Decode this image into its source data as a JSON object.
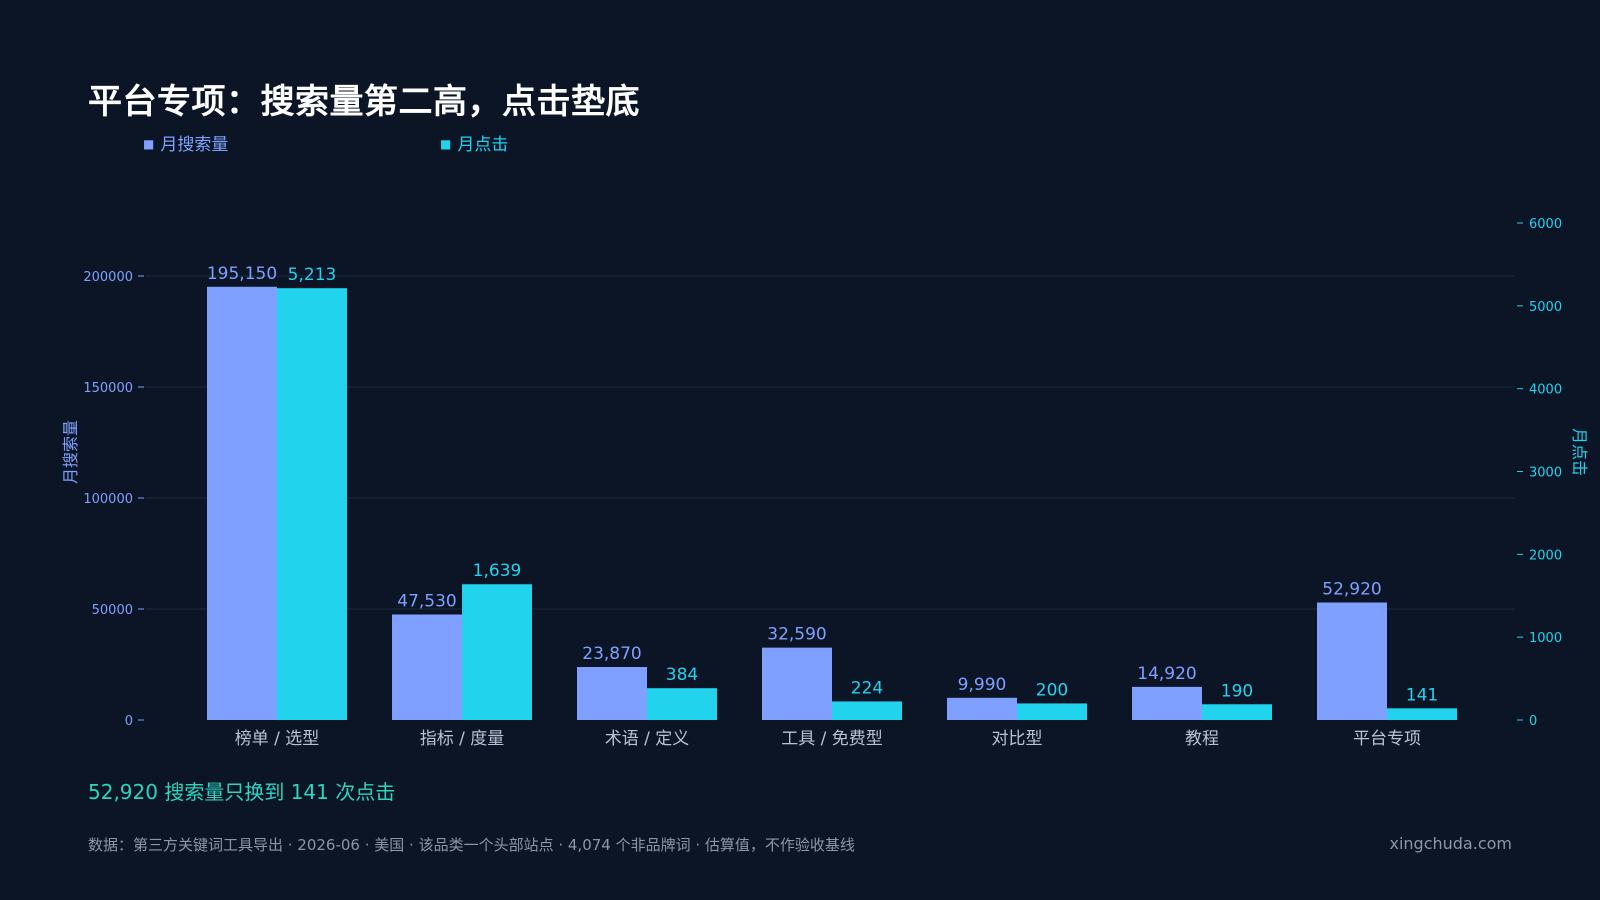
{
  "title": "平台专项：搜索量第二高，点击垫底",
  "insight": "52,920 搜索量只换到 141 次点击",
  "footer": {
    "source": "数据：第三方关键词工具导出 · 2026-06 · 美国 · 该品类一个头部站点 · 4,074 个非品牌词 · 估算值，不作验收基线",
    "site": "xingchuda.com"
  },
  "colors": {
    "background": "#0b1526",
    "search": "#7fa0ff",
    "clicks": "#22d3ee",
    "insight": "#2dd4bf"
  },
  "chart_data": {
    "type": "bar",
    "categories": [
      "榜单 / 选型",
      "指标 / 度量",
      "术语 / 定义",
      "工具 / 免费型",
      "对比型",
      "教程",
      "平台专项"
    ],
    "series": [
      {
        "name": "月搜索量",
        "axis": "left",
        "values": [
          195150,
          47530,
          23870,
          32590,
          9990,
          14920,
          52920
        ],
        "labels": [
          "195,150",
          "47,530",
          "23,870",
          "32,590",
          "9,990",
          "14,920",
          "52,920"
        ]
      },
      {
        "name": "月点击",
        "axis": "right",
        "values": [
          5213,
          1639,
          384,
          224,
          200,
          190,
          141
        ],
        "labels": [
          "5,213",
          "1,639",
          "384",
          "224",
          "200",
          "190",
          "141"
        ]
      }
    ],
    "y_left": {
      "label": "月搜索量",
      "ticks": [
        "0",
        "50000",
        "100000",
        "150000",
        "200000"
      ],
      "range": [
        0,
        200000
      ]
    },
    "y_right": {
      "label": "月点击",
      "ticks": [
        "0",
        "1000",
        "2000",
        "3000",
        "4000",
        "5000",
        "6000"
      ],
      "range": [
        0,
        6000
      ]
    },
    "grid": true,
    "legend": "top-left"
  }
}
